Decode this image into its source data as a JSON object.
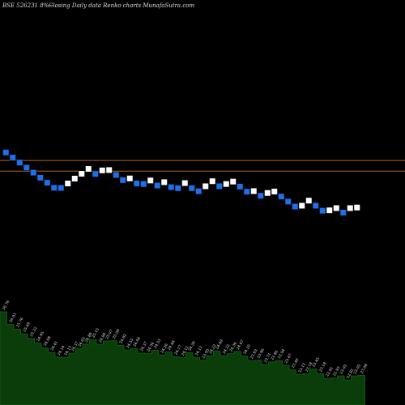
{
  "header": {
    "title": "BSE 526231 8%~",
    "subtitle": "Closing Daily data  Renko  charts MunafaSutra.com"
  },
  "colors": {
    "background": "#000000",
    "up_brick": "#ffffff",
    "down_brick": "#1e6fe8",
    "brick_outline": "#000000",
    "reference_line": "#b5651d",
    "volume_fill": "#0b3d0b",
    "volume_line": "#0c5a0c"
  },
  "chart_data": {
    "type": "renko",
    "reference_lines": [
      25.6,
      25.03
    ],
    "ylim": [
      12.5,
      34.2
    ],
    "bricks": [
      {
        "dir": "down",
        "value": 26.03
      },
      {
        "dir": "down",
        "value": 25.76
      },
      {
        "dir": "down",
        "value": 25.49
      },
      {
        "dir": "down",
        "value": 25.22
      },
      {
        "dir": "down",
        "value": 24.95
      },
      {
        "dir": "down",
        "value": 24.68
      },
      {
        "dir": "down",
        "value": 24.41
      },
      {
        "dir": "down",
        "value": 24.14
      },
      {
        "dir": "down",
        "value": 24.13
      },
      {
        "dir": "up",
        "value": 24.37
      },
      {
        "dir": "up",
        "value": 24.63
      },
      {
        "dir": "up",
        "value": 24.89
      },
      {
        "dir": "up",
        "value": 25.15
      },
      {
        "dir": "down",
        "value": 24.88
      },
      {
        "dir": "up",
        "value": 25.07
      },
      {
        "dir": "up",
        "value": 25.09
      },
      {
        "dir": "down",
        "value": 24.82
      },
      {
        "dir": "down",
        "value": 24.55
      },
      {
        "dir": "up",
        "value": 24.64
      },
      {
        "dir": "down",
        "value": 24.37
      },
      {
        "dir": "down",
        "value": 24.34
      },
      {
        "dir": "up",
        "value": 24.53
      },
      {
        "dir": "down",
        "value": 24.26
      },
      {
        "dir": "up",
        "value": 24.44
      },
      {
        "dir": "down",
        "value": 24.17
      },
      {
        "dir": "down",
        "value": 24.12
      },
      {
        "dir": "up",
        "value": 24.39
      },
      {
        "dir": "down",
        "value": 24.12
      },
      {
        "dir": "down",
        "value": 23.95
      },
      {
        "dir": "up",
        "value": 24.22
      },
      {
        "dir": "up",
        "value": 24.49
      },
      {
        "dir": "down",
        "value": 24.22
      },
      {
        "dir": "up",
        "value": 24.34
      },
      {
        "dir": "up",
        "value": 24.47
      },
      {
        "dir": "down",
        "value": 24.2
      },
      {
        "dir": "down",
        "value": 23.93
      },
      {
        "dir": "up",
        "value": 23.96
      },
      {
        "dir": "down",
        "value": 23.71
      },
      {
        "dir": "up",
        "value": 23.86
      },
      {
        "dir": "up",
        "value": 23.94
      },
      {
        "dir": "down",
        "value": 23.67
      },
      {
        "dir": "down",
        "value": 23.4
      },
      {
        "dir": "down",
        "value": 23.13
      },
      {
        "dir": "up",
        "value": 23.18
      },
      {
        "dir": "up",
        "value": 23.45
      },
      {
        "dir": "down",
        "value": 23.18
      },
      {
        "dir": "down",
        "value": 22.91
      },
      {
        "dir": "up",
        "value": 22.93
      },
      {
        "dir": "up",
        "value": 23.05
      },
      {
        "dir": "down",
        "value": 22.81
      },
      {
        "dir": "up",
        "value": 23.05
      },
      {
        "dir": "up",
        "value": 23.08
      }
    ],
    "volume_labels": [
      "26.76",
      "26.03",
      "25.76",
      "25.49",
      "25.22",
      "24.95",
      "24.68",
      "24.41",
      "24.14",
      "24.13",
      "24.37",
      "24.63",
      "24.89",
      "25.15",
      "24.88",
      "25.07",
      "25.09",
      "24.82",
      "24.55",
      "24.64",
      "24.37",
      "24.34",
      "24.53",
      "24.26",
      "24.44",
      "24.17",
      "24.12",
      "24.39",
      "24.12",
      "23.95",
      "24.22",
      "24.49",
      "24.22",
      "24.34",
      "24.47",
      "24.20",
      "23.93",
      "23.96",
      "23.71",
      "23.86",
      "23.94",
      "23.67",
      "23.40",
      "23.13",
      "23.18",
      "23.45",
      "23.18",
      "22.91",
      "22.93",
      "23.05",
      "22.81",
      "23.05",
      "23.08"
    ]
  }
}
